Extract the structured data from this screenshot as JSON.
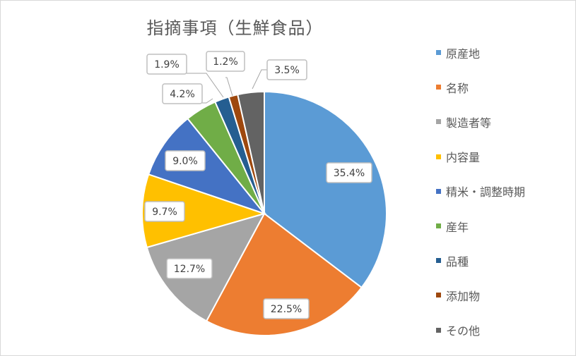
{
  "chart_data": {
    "type": "pie",
    "title": "指摘事項（生鮮食品）",
    "legend_position": "right",
    "slices": [
      {
        "label": "原産地",
        "value": 35.4,
        "display": "35.4%",
        "color": "#5b9bd5"
      },
      {
        "label": "名称",
        "value": 22.5,
        "display": "22.5%",
        "color": "#ed7d31"
      },
      {
        "label": "製造者等",
        "value": 12.7,
        "display": "12.7%",
        "color": "#a5a5a5"
      },
      {
        "label": "内容量",
        "value": 9.7,
        "display": "9.7%",
        "color": "#ffc000"
      },
      {
        "label": "精米・調整時期",
        "value": 9.0,
        "display": "9.0%",
        "color": "#4472c4"
      },
      {
        "label": "産年",
        "value": 4.2,
        "display": "4.2%",
        "color": "#70ad47"
      },
      {
        "label": "品種",
        "value": 1.9,
        "display": "1.9%",
        "color": "#255e91"
      },
      {
        "label": "添加物",
        "value": 1.2,
        "display": "1.2%",
        "color": "#9e480e"
      },
      {
        "label": "その他",
        "value": 3.5,
        "display": "3.5%",
        "color": "#636363"
      }
    ]
  }
}
